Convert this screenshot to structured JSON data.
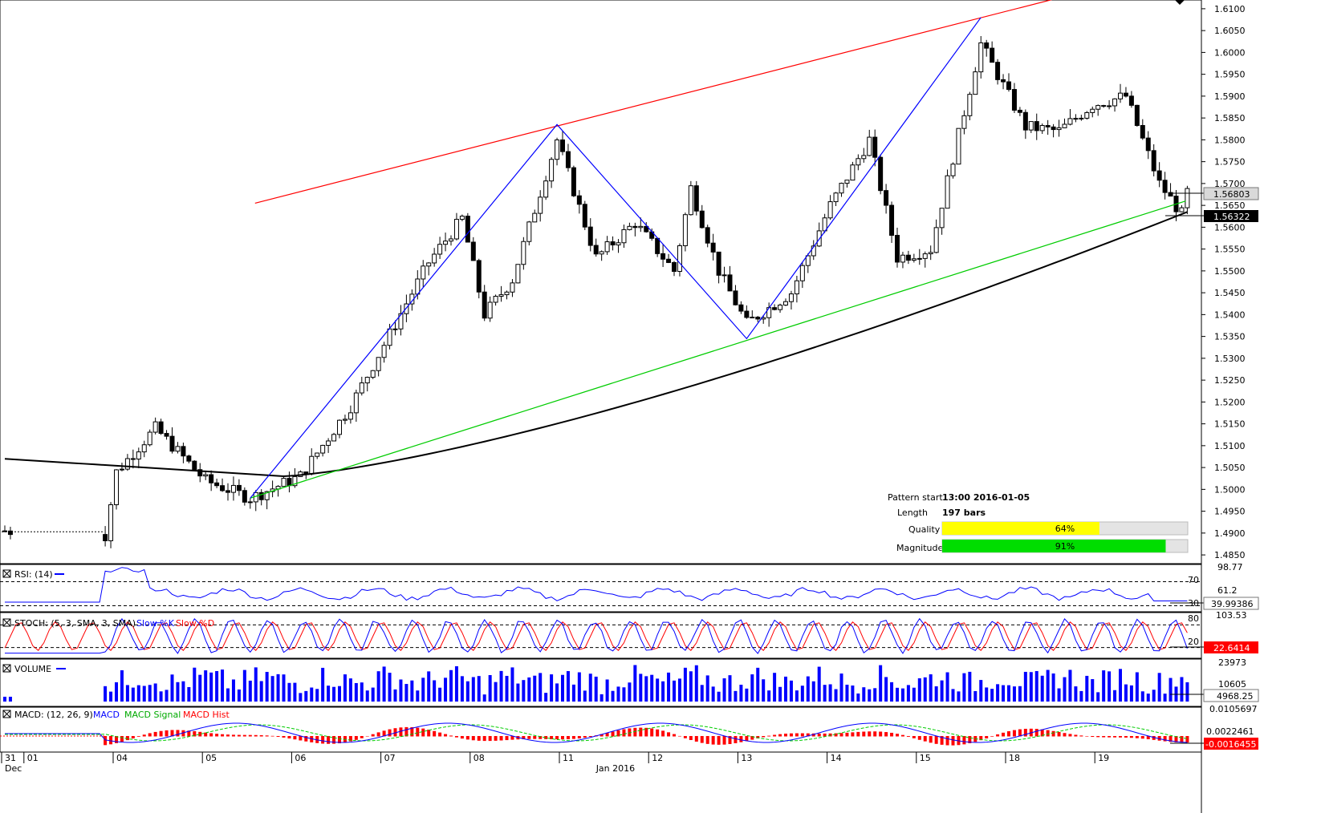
{
  "chart_data": {
    "type": "candlestick",
    "instrument_current_price": "1.56803",
    "ma_price": "1.56322",
    "y_ticks": [
      "1.6100",
      "1.6050",
      "1.6000",
      "1.5950",
      "1.5900",
      "1.5850",
      "1.5800",
      "1.5750",
      "1.5700",
      "1.5650",
      "1.5600",
      "1.5550",
      "1.5500",
      "1.5450",
      "1.5400",
      "1.5350",
      "1.5300",
      "1.5250",
      "1.5200",
      "1.5150",
      "1.5100",
      "1.5050",
      "1.5000",
      "1.4950",
      "1.4900",
      "1.4850"
    ],
    "y_range": [
      1.483,
      1.612
    ],
    "x_labels": [
      {
        "label": "31",
        "bar": 0
      },
      {
        "label": "01",
        "bar": 4
      },
      {
        "label": "04",
        "bar": 20
      },
      {
        "label": "05",
        "bar": 36
      },
      {
        "label": "06",
        "bar": 52
      },
      {
        "label": "07",
        "bar": 68
      },
      {
        "label": "08",
        "bar": 84
      },
      {
        "label": "11",
        "bar": 100
      },
      {
        "label": "12",
        "bar": 116
      },
      {
        "label": "13",
        "bar": 132
      },
      {
        "label": "14",
        "bar": 148
      },
      {
        "label": "15",
        "bar": 164
      },
      {
        "label": "18",
        "bar": 180
      },
      {
        "label": "19",
        "bar": 196
      }
    ],
    "x_sublabels": [
      {
        "label": "Dec",
        "bar": 0
      },
      {
        "label": "Jan 2016",
        "bar": 106
      }
    ],
    "pattern": {
      "start_label": "Pattern start",
      "start_value": "13:00 2016-01-05",
      "length_label": "Length",
      "length_value": "197 bars",
      "quality_label": "Quality",
      "quality": 64,
      "quality_text": "64%",
      "magnitude_label": "Magnitude",
      "magnitude": 91,
      "magnitude_text": "91%"
    },
    "pattern_points": [
      {
        "bar": 44,
        "price": 1.498
      },
      {
        "bar": 99,
        "price": 1.5835
      },
      {
        "bar": 133,
        "price": 1.5345
      },
      {
        "bar": 175,
        "price": 1.608
      }
    ],
    "resistance_line": [
      {
        "bar": 44,
        "price": 1.5655
      },
      {
        "bar": 189,
        "price": 1.6125
      }
    ],
    "support_line": [
      {
        "bar": 44,
        "price": 1.498
      },
      {
        "bar": 211,
        "price": 1.566
      }
    ],
    "panels": {
      "rsi": {
        "title": "RSI: (14)",
        "levels": [
          "70",
          "30"
        ],
        "scale_top": "98.77",
        "scale_mid": "61.2",
        "value": "39.99386"
      },
      "stoch": {
        "title": "STOCH: (5, 3, SMA, 3, SMA)",
        "series_k": "Slow %K",
        "series_d": "Slow %D",
        "scale_top": "103.53",
        "levels": [
          "80",
          "20"
        ],
        "value": "22.6414"
      },
      "volume": {
        "title": "VOLUME",
        "scale_top": "23973",
        "scale_mid": "10605",
        "value": "4968.25"
      },
      "macd": {
        "title": "MACD: (12, 26, 9)",
        "series_a": "MACD",
        "series_b": "MACD Signal",
        "series_c": "MACD Hist",
        "scale_top": "0.0105697",
        "scale_mid": "0.0022461",
        "value": "-0.0016455"
      }
    },
    "colors": {
      "up": "#ffffff",
      "down": "#000000",
      "resistance": "#ff0000",
      "support": "#00cc00",
      "zigzag": "#0000ff",
      "ma": "#000000",
      "rsi": "#0000ff",
      "stoch_k": "#0000ff",
      "stoch_d": "#ff0000",
      "volume": "#0000ff",
      "macd": "#0000ff",
      "signal": "#00cc00",
      "hist": "#ff0000",
      "quality": "#ffff00",
      "magnitude": "#00dd00"
    }
  }
}
